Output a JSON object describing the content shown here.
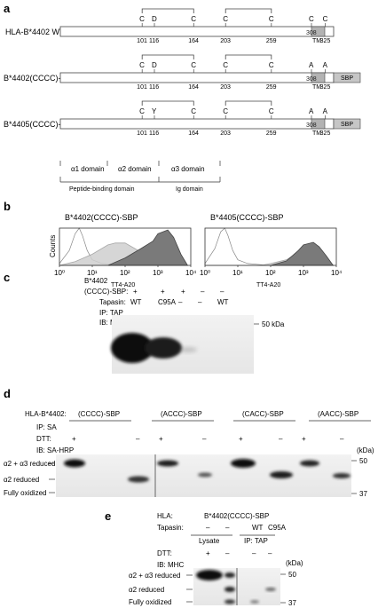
{
  "panel_a": {
    "label": "a",
    "constructs": [
      {
        "name": "HLA-B*4402 WT",
        "residues_top": [
          "C",
          "D",
          "C",
          "C",
          "C",
          "C",
          "C"
        ],
        "positions": [
          "101",
          "116",
          "164",
          "203",
          "259",
          "308",
          "325"
        ],
        "tm": "TM",
        "sbp": ""
      },
      {
        "name": "B*4402(CCCC)-SBP",
        "residues_top": [
          "C",
          "D",
          "C",
          "C",
          "C",
          "A",
          "A"
        ],
        "positions": [
          "101",
          "116",
          "164",
          "203",
          "259",
          "308",
          "325"
        ],
        "tm": "TM",
        "sbp": "SBP"
      },
      {
        "name": "B*4405(CCCC)-SBP",
        "residues_top": [
          "C",
          "Y",
          "C",
          "C",
          "C",
          "A",
          "A"
        ],
        "positions": [
          "101",
          "116",
          "164",
          "203",
          "259",
          "308",
          "325"
        ],
        "tm": "TM",
        "sbp": "SBP"
      }
    ],
    "domains": {
      "alpha1": "α1 domain",
      "alpha2": "α2 domain",
      "alpha3": "α3 domain",
      "peptide_binding": "Peptide-binding domain",
      "ig": "Ig domain"
    }
  },
  "panel_b": {
    "label": "b",
    "chart_data": [
      {
        "type": "area",
        "title": "B*4402(CCCC)-SBP",
        "ylabel": "Counts",
        "xlabel": "TT4-A20",
        "xscale": "log",
        "xlim": [
          1,
          10000
        ],
        "xticks": [
          "10⁰",
          "10¹",
          "10²",
          "10³",
          "10⁴"
        ],
        "series": [
          {
            "style": "control-outline",
            "x": [
              1,
              2,
              3,
              4,
              5,
              7,
              10,
              20,
              50,
              100
            ],
            "y": [
              5,
              40,
              85,
              100,
              80,
              40,
              15,
              5,
              2,
              0
            ]
          },
          {
            "style": "light-fill",
            "x": [
              1,
              3,
              10,
              30,
              50,
              100,
              200,
              500,
              1000,
              3000
            ],
            "y": [
              0,
              10,
              30,
              55,
              60,
              60,
              45,
              25,
              10,
              0
            ]
          },
          {
            "style": "dark-fill",
            "x": [
              30,
              100,
              300,
              700,
              1000,
              2000,
              3000,
              5000,
              8000
            ],
            "y": [
              0,
              20,
              45,
              65,
              85,
              95,
              75,
              30,
              0
            ]
          }
        ]
      },
      {
        "type": "area",
        "title": "B*4405(CCCC)-SBP",
        "ylabel": "",
        "xlabel": "TT4-A20",
        "xscale": "log",
        "xlim": [
          1,
          10000
        ],
        "xticks": [
          "10⁰",
          "10¹",
          "10²",
          "10³",
          "10⁴"
        ],
        "series": [
          {
            "style": "control-outline",
            "x": [
              1,
              2,
              3,
              4,
              5,
              7,
              10,
              20,
              50,
              100
            ],
            "y": [
              5,
              45,
              90,
              100,
              80,
              40,
              15,
              5,
              2,
              0
            ]
          },
          {
            "style": "light-fill",
            "x": [
              50,
              100,
              300,
              700,
              1000,
              2000,
              3000,
              5000,
              8000
            ],
            "y": [
              0,
              5,
              15,
              35,
              45,
              50,
              40,
              20,
              0
            ]
          },
          {
            "style": "dark-fill",
            "x": [
              100,
              300,
              700,
              1000,
              2000,
              3000,
              5000,
              8000
            ],
            "y": [
              0,
              12,
              40,
              55,
              62,
              50,
              25,
              0
            ]
          }
        ]
      }
    ]
  },
  "panel_c": {
    "label": "c",
    "header": "B*4402",
    "row1_label": "(CCCC)-SBP:",
    "row1": [
      "+",
      "+",
      "+",
      "–",
      "–"
    ],
    "row2_label": "Tapasin:",
    "row2": [
      "WT",
      "C95A",
      "–",
      "–",
      "WT"
    ],
    "ip": "IP: TAP",
    "ib": "IB: MHC",
    "marker": "50 kDa"
  },
  "panel_d": {
    "label": "d",
    "header": "HLA-B*4402:",
    "groups": [
      "(CCCC)-SBP",
      "(ACCC)-SBP",
      "(CACC)-SBP",
      "(AACC)-SBP"
    ],
    "ip": "IP: SA",
    "dtt_label": "DTT:",
    "dtt": [
      "+",
      "–",
      "+",
      "–",
      "+",
      "–",
      "+",
      "–"
    ],
    "ib": "IB: SA-HRP",
    "bands": [
      "α2 + α3 reduced",
      "α2 reduced",
      "Fully oxidized"
    ],
    "kda": "(kDa)",
    "markers": [
      "50",
      "37"
    ]
  },
  "panel_e": {
    "label": "e",
    "hla_label": "HLA:",
    "hla_value": "B*4402(CCCC)-SBP",
    "tapasin_label": "Tapasin:",
    "tapasin": [
      "–",
      "–",
      "WT",
      "C95A"
    ],
    "lysate": "Lysate",
    "ip": "IP: TAP",
    "dtt_label": "DTT:",
    "dtt": [
      "+",
      "–",
      "–",
      "–"
    ],
    "ib": "IB: MHC",
    "kda": "(kDa)",
    "bands": [
      "α2 + α3 reduced",
      "α2 reduced",
      "Fully oxidized"
    ],
    "markers": [
      "50",
      "37"
    ]
  }
}
